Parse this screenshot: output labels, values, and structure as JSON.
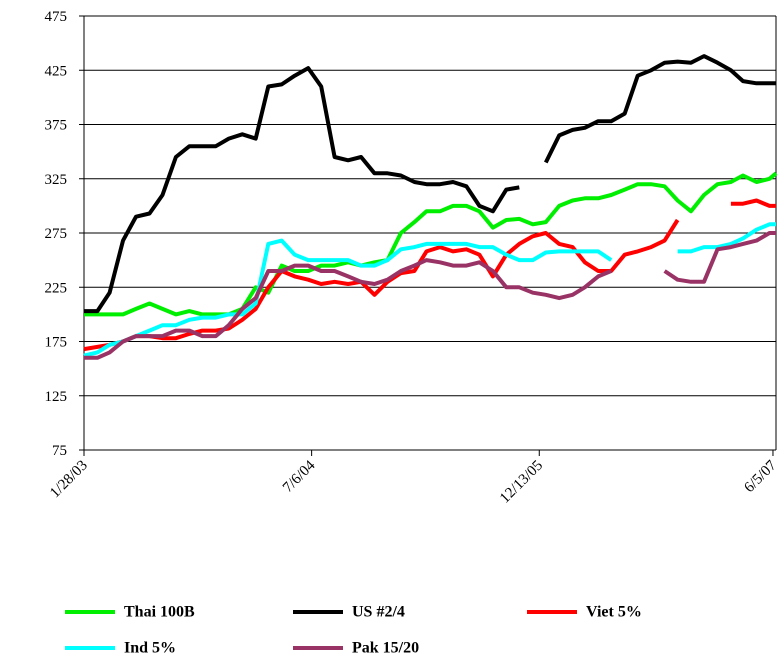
{
  "chart_data": {
    "type": "line",
    "x": [
      "1/28/03",
      "2/28/03",
      "3/28/03",
      "4/28/03",
      "5/28/03",
      "6/28/03",
      "7/28/03",
      "8/28/03",
      "9/28/03",
      "10/28/03",
      "11/28/03",
      "12/28/03",
      "1/28/04",
      "2/28/04",
      "3/28/04",
      "4/28/04",
      "5/28/04",
      "6/28/04",
      "7/28/04",
      "8/28/04",
      "9/28/04",
      "10/28/04",
      "11/28/04",
      "12/28/04",
      "1/28/05",
      "2/28/05",
      "3/28/05",
      "4/28/05",
      "5/28/05",
      "6/28/05",
      "7/28/05",
      "8/28/05",
      "9/28/05",
      "10/28/05",
      "11/28/05",
      "12/28/05",
      "1/28/06",
      "2/28/06",
      "3/28/06",
      "4/28/06",
      "5/28/06",
      "6/28/06",
      "7/28/06",
      "8/28/06",
      "9/28/06",
      "10/28/06",
      "11/28/06",
      "12/28/06",
      "1/28/07",
      "2/28/07",
      "3/28/07",
      "4/28/07",
      "5/28/07",
      "6/12/07"
    ],
    "xlim": [
      "1/28/03",
      "6/12/07"
    ],
    "xticks": [
      "1/28/03",
      "7/6/04",
      "12/13/05",
      "6/5/07"
    ],
    "ylim": [
      75,
      475
    ],
    "yticks": [
      75,
      125,
      175,
      225,
      275,
      325,
      375,
      425,
      475
    ],
    "grid": true,
    "series": [
      {
        "name": "Thai 100B",
        "color": "#00ee00",
        "values": [
          200,
          200,
          200,
          200,
          205,
          210,
          205,
          200,
          203,
          200,
          200,
          200,
          205,
          225,
          220,
          245,
          240,
          240,
          245,
          245,
          248,
          245,
          248,
          250,
          275,
          285,
          295,
          295,
          300,
          300,
          295,
          280,
          287,
          288,
          283,
          285,
          300,
          305,
          307,
          307,
          310,
          315,
          320,
          320,
          318,
          305,
          295,
          310,
          320,
          322,
          328,
          322,
          325,
          330
        ]
      },
      {
        "name": "US #2/4",
        "color": "#000000",
        "values": [
          203,
          203,
          220,
          268,
          290,
          293,
          310,
          345,
          355,
          355,
          355,
          362,
          366,
          362,
          410,
          412,
          420,
          427,
          410,
          345,
          342,
          345,
          330,
          330,
          328,
          322,
          320,
          320,
          322,
          318,
          300,
          295,
          315,
          317,
          null,
          340,
          365,
          370,
          372,
          378,
          378,
          385,
          420,
          425,
          432,
          433,
          432,
          438,
          432,
          425,
          415,
          413,
          413,
          413
        ]
      },
      {
        "name": "Viet 5%",
        "color": "#ff0000",
        "values": [
          168,
          170,
          172,
          175,
          180,
          180,
          178,
          178,
          182,
          185,
          185,
          187,
          195,
          205,
          225,
          240,
          235,
          232,
          228,
          230,
          228,
          230,
          218,
          230,
          238,
          240,
          258,
          262,
          258,
          260,
          255,
          235,
          255,
          265,
          272,
          275,
          265,
          262,
          248,
          240,
          240,
          255,
          258,
          262,
          268,
          287,
          null,
          null,
          null,
          302,
          302,
          305,
          300,
          300
        ]
      },
      {
        "name": "Ind 5%",
        "color": "#00ffff",
        "values": [
          162,
          165,
          172,
          175,
          180,
          185,
          190,
          190,
          195,
          197,
          197,
          200,
          200,
          210,
          265,
          268,
          255,
          250,
          250,
          250,
          250,
          245,
          245,
          250,
          260,
          262,
          265,
          265,
          265,
          265,
          262,
          262,
          255,
          250,
          250,
          257,
          258,
          258,
          258,
          258,
          250,
          null,
          null,
          null,
          null,
          258,
          258,
          262,
          262,
          265,
          270,
          278,
          283,
          283
        ]
      },
      {
        "name": "Pak 15/20",
        "color": "#993366",
        "values": [
          160,
          160,
          165,
          175,
          180,
          180,
          180,
          185,
          185,
          180,
          180,
          190,
          205,
          215,
          240,
          240,
          245,
          245,
          240,
          240,
          235,
          230,
          228,
          232,
          240,
          245,
          250,
          248,
          245,
          245,
          248,
          240,
          225,
          225,
          220,
          218,
          215,
          218,
          225,
          235,
          240,
          null,
          null,
          null,
          240,
          232,
          230,
          230,
          260,
          262,
          265,
          268,
          275,
          275
        ]
      }
    ]
  }
}
